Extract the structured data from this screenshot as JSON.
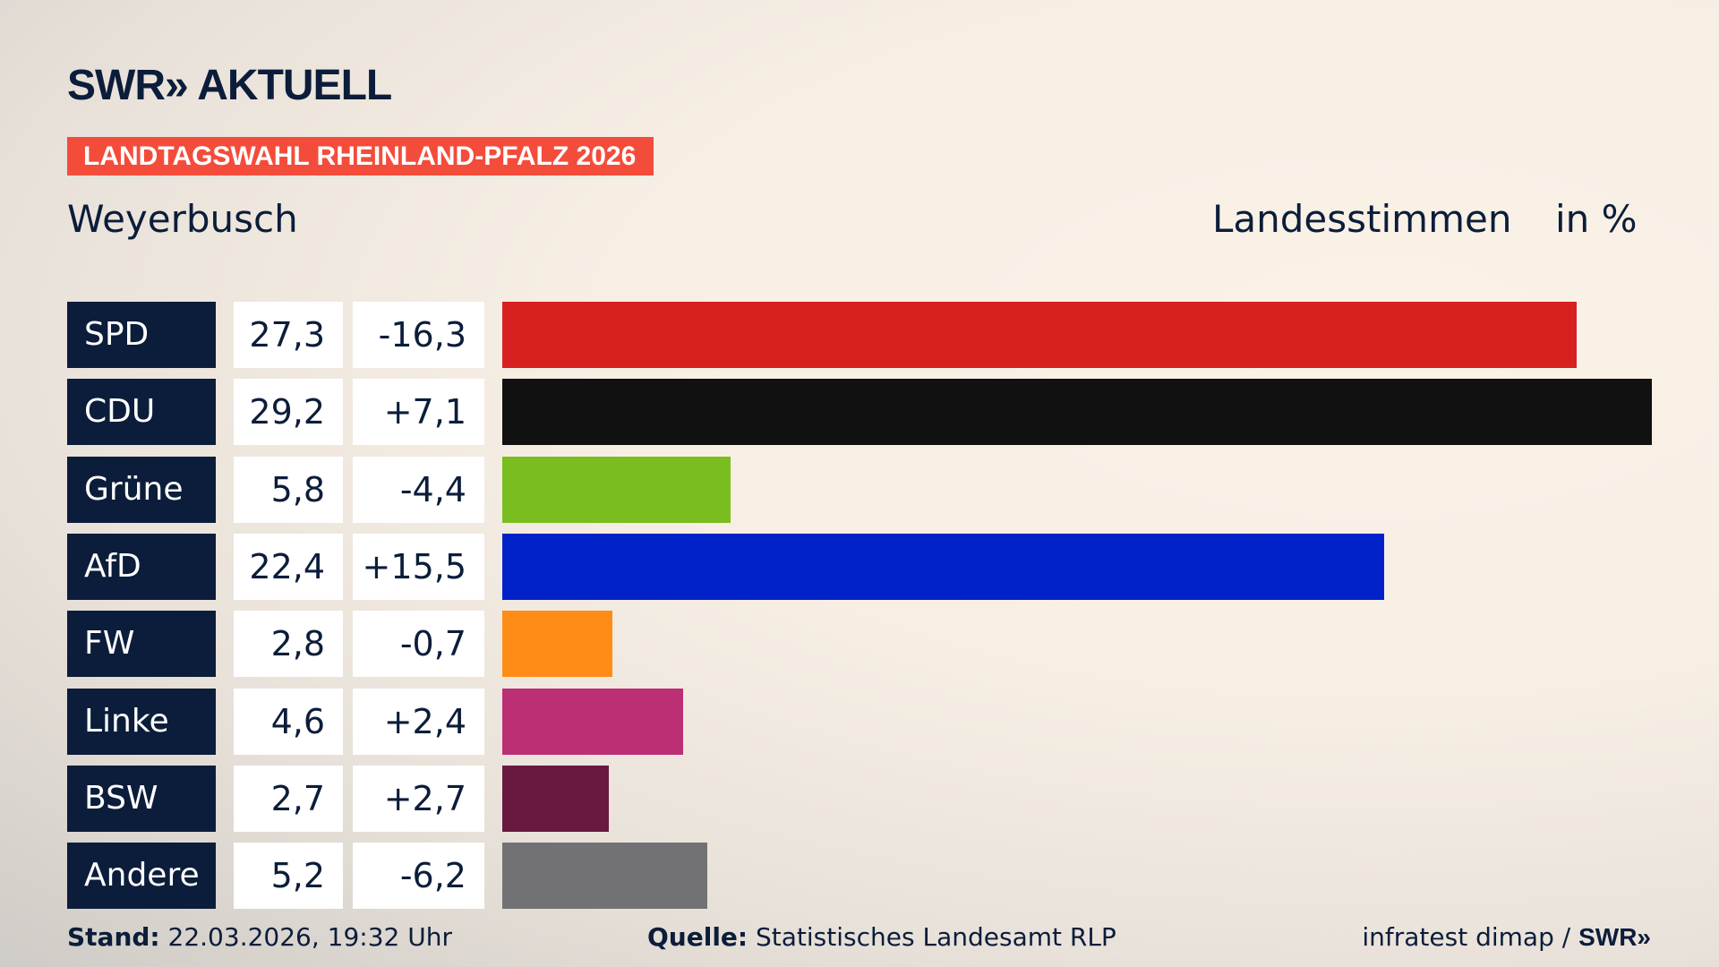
{
  "header": {
    "logo": "SWR» AKTUELL",
    "banner": "LANDTAGSWAHL RHEINLAND-PFALZ 2026",
    "place": "Weyerbusch",
    "measure": "Landesstimmen",
    "unit": "in %"
  },
  "chart_data": {
    "type": "bar",
    "orientation": "horizontal",
    "categories": [
      "SPD",
      "CDU",
      "Grüne",
      "AfD",
      "FW",
      "Linke",
      "BSW",
      "Andere"
    ],
    "values": [
      "27,3",
      "29,2",
      "5,8",
      "22,4",
      "2,8",
      "4,6",
      "2,7",
      "5,2"
    ],
    "numeric_values": [
      27.3,
      29.2,
      5.8,
      22.4,
      2.8,
      4.6,
      2.7,
      5.2
    ],
    "changes": [
      "-16,3",
      "+7,1",
      "-4,4",
      "+15,5",
      "-0,7",
      "+2,4",
      "+2,7",
      "-6,2"
    ],
    "colors": [
      "#d72020",
      "#111111",
      "#7abd1e",
      "#0022c8",
      "#ff8c17",
      "#bb2f75",
      "#691840",
      "#727274"
    ],
    "xlim": [
      0,
      29.2
    ]
  },
  "footer": {
    "stand_label": "Stand:",
    "stand": "22.03.2026, 19:32 Uhr",
    "source_label": "Quelle:",
    "source": "Statistisches Landesamt RLP",
    "credit": "infratest dimap / ",
    "credit_logo": "SWR»"
  }
}
